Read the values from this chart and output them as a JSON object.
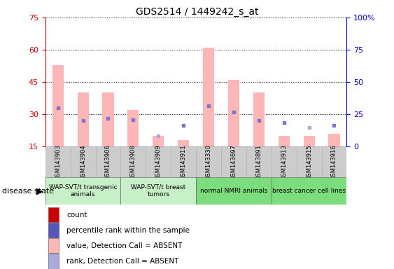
{
  "title": "GDS2514 / 1449242_s_at",
  "samples": [
    "GSM143903",
    "GSM143904",
    "GSM143906",
    "GSM143908",
    "GSM143909",
    "GSM143911",
    "GSM143330",
    "GSM143697",
    "GSM143891",
    "GSM143913",
    "GSM143915",
    "GSM143916"
  ],
  "bar_values": [
    53,
    40,
    40,
    32,
    null,
    null,
    61,
    46,
    40,
    null,
    null,
    null
  ],
  "bar_rank_values": [
    null,
    null,
    null,
    null,
    20,
    18,
    null,
    null,
    null,
    20,
    20,
    21
  ],
  "dot_rank": [
    33,
    27,
    28,
    27.5,
    null,
    25,
    34,
    31,
    27,
    26,
    null,
    25
  ],
  "dot_rank_absent": [
    null,
    null,
    null,
    null,
    20,
    null,
    null,
    null,
    null,
    null,
    24,
    null
  ],
  "ylim_left": [
    15,
    75
  ],
  "ylim_right": [
    0,
    100
  ],
  "yticks_left": [
    15,
    30,
    45,
    60,
    75
  ],
  "yticks_right": [
    0,
    25,
    50,
    75,
    100
  ],
  "groups": [
    {
      "label": "WAP-SVT/t transgenic\nanimals",
      "start": 0,
      "end": 3,
      "color": "#c8f0c8"
    },
    {
      "label": "WAP-SVT/t breast\ntumors",
      "start": 3,
      "end": 6,
      "color": "#c8f0c8"
    },
    {
      "label": "normal NMRI animals",
      "start": 6,
      "end": 9,
      "color": "#7cdd7c"
    },
    {
      "label": "breast cancer cell lines",
      "start": 9,
      "end": 12,
      "color": "#7cdd7c"
    }
  ],
  "bar_color_present": "#ffb6b6",
  "bar_color_absent": "#ffb6b6",
  "dot_color_present": "#7777cc",
  "dot_color_absent": "#aaaadd",
  "bg_color": "#ffffff",
  "left_axis_color": "#cc0000",
  "right_axis_color": "#0000cc",
  "sample_bg": "#cccccc",
  "legend_items": [
    {
      "label": "count",
      "color": "#cc0000"
    },
    {
      "label": "percentile rank within the sample",
      "color": "#5555bb"
    },
    {
      "label": "value, Detection Call = ABSENT",
      "color": "#ffb6b6"
    },
    {
      "label": "rank, Detection Call = ABSENT",
      "color": "#aaaadd"
    }
  ]
}
